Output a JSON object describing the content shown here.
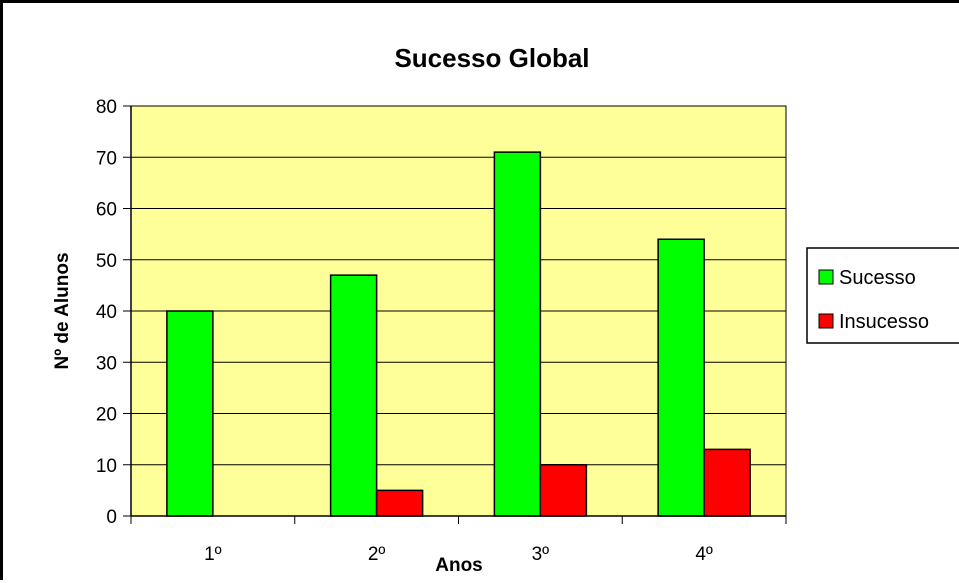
{
  "chart_data": {
    "type": "bar",
    "title": "Sucesso Global",
    "xlabel": "Anos",
    "ylabel": "Nº de Alunos",
    "categories": [
      "1º",
      "2º",
      "3º",
      "4º"
    ],
    "series": [
      {
        "name": "Sucesso",
        "values": [
          40,
          47,
          71,
          54
        ],
        "color": "#00FF00"
      },
      {
        "name": "Insucesso",
        "values": [
          0,
          5,
          10,
          13
        ],
        "color": "#FF0000"
      }
    ],
    "ylim": [
      0,
      80
    ],
    "yticks": [
      0,
      10,
      20,
      30,
      40,
      50,
      60,
      70,
      80
    ],
    "grid": true,
    "legend_position": "right",
    "plot_background": "#FFFF99"
  }
}
